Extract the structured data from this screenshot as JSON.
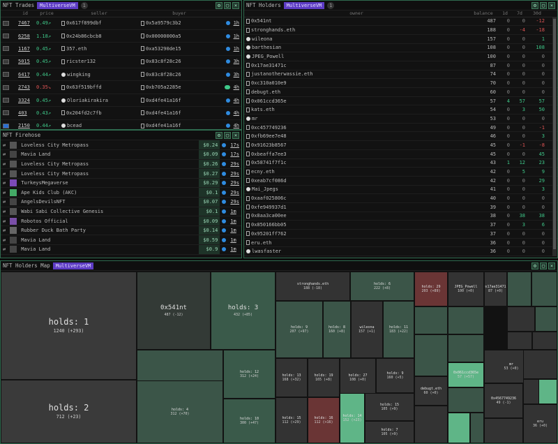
{
  "trades": {
    "title": "NFT Trades",
    "tag": "MultiverseVM",
    "tag_count": "1",
    "cols": {
      "id": "id",
      "price": "price",
      "seller": "seller",
      "buyer": "buyer"
    },
    "rows": [
      {
        "id": "7467",
        "price": "0.49",
        "seller": "0x617f899dbf",
        "buyer": "0x5a9579c3b2",
        "time": "1h"
      },
      {
        "id": "6258",
        "price": "1.18",
        "seller": "0x24b86cbcb8",
        "buyer": "0x00000000a5",
        "time": "1h"
      },
      {
        "id": "1167",
        "price": "0.45",
        "seller": "357.eth",
        "buyer": "0xa53290de15",
        "time": "1h"
      },
      {
        "id": "5015",
        "price": "0.45",
        "seller": "ricster132",
        "buyer": "0x83c8f28c26",
        "time": "3h"
      },
      {
        "id": "6417",
        "price": "0.44",
        "seller": "wingking",
        "buyer": "0x83c8f28c26",
        "time": "3h"
      },
      {
        "id": "2743",
        "price": "0.35",
        "seller": "0x63f519bffd",
        "buyer": "0xb705a2285e",
        "time": "4h"
      },
      {
        "id": "3324",
        "price": "0.45",
        "seller": "Oloriakirakira",
        "buyer": "0xd4fe41a16f",
        "time": "4h"
      },
      {
        "id": "403",
        "price": "0.43",
        "seller": "0x204fd2c7fb",
        "buyer": "0xd4fe41a16f",
        "time": "4h"
      },
      {
        "id": "2150",
        "price": "0.44",
        "seller": "bcead",
        "buyer": "0xd4fe41a16f",
        "time": "4h"
      }
    ]
  },
  "firehose": {
    "title": "NFT Firehose",
    "rows": [
      {
        "name": "Loveless City Metropass",
        "price": "$0.24",
        "time": "17s"
      },
      {
        "name": "Mavia Land",
        "price": "$0.09",
        "time": "17s"
      },
      {
        "name": "Loveless City Metropass",
        "price": "$0.26",
        "time": "29s"
      },
      {
        "name": "Loveless City Metropass",
        "price": "$0.27",
        "time": "29s"
      },
      {
        "name": "TurkeysMegaverse",
        "price": "$0.29",
        "time": "29s"
      },
      {
        "name": "Ape Kids Club (AKC)",
        "price": "$0.1",
        "time": "29s"
      },
      {
        "name": "AngelsDevilsNFT",
        "price": "$0.07",
        "time": "29s"
      },
      {
        "name": "Wabi Sabi Collective Genesis",
        "price": "$0.1",
        "time": "1m"
      },
      {
        "name": "Robotos Official",
        "price": "$0.09",
        "time": "1m"
      },
      {
        "name": "Rubber Duck Bath Party",
        "price": "$0.14",
        "time": "1m"
      },
      {
        "name": "Mavia Land",
        "price": "$0.59",
        "time": "1m"
      },
      {
        "name": "Mavia Land",
        "price": "$0.9",
        "time": "1m"
      }
    ]
  },
  "holders": {
    "title": "NFT Holders",
    "tag": "MultiverseVM",
    "tag_count": "1",
    "cols": {
      "owner": "owner",
      "balance": "balance",
      "d1": "1d",
      "d7": "7d",
      "d30": "30d"
    },
    "rows": [
      {
        "owner": "0x541nt",
        "bal": "487",
        "d1": "0",
        "d7": "0",
        "d30": "-12"
      },
      {
        "owner": "stronghands.eth",
        "bal": "188",
        "d1": "0",
        "d7": "-4",
        "d30": "-18"
      },
      {
        "owner": "wileona",
        "bal": "157",
        "d1": "0",
        "d7": "0",
        "d30": "1"
      },
      {
        "owner": "barthesian",
        "bal": "108",
        "d1": "0",
        "d7": "0",
        "d30": "108"
      },
      {
        "owner": "JPEG_Powell",
        "bal": "100",
        "d1": "0",
        "d7": "0",
        "d30": "0"
      },
      {
        "owner": "0x17ae31471c",
        "bal": "87",
        "d1": "0",
        "d7": "0",
        "d30": "0"
      },
      {
        "owner": "justanotherwassie.eth",
        "bal": "74",
        "d1": "0",
        "d7": "0",
        "d30": "0"
      },
      {
        "owner": "0xc310a010e9",
        "bal": "70",
        "d1": "0",
        "d7": "0",
        "d30": "0"
      },
      {
        "owner": "debugt.eth",
        "bal": "60",
        "d1": "0",
        "d7": "0",
        "d30": "0"
      },
      {
        "owner": "0x061ccd365e",
        "bal": "57",
        "d1": "4",
        "d7": "57",
        "d30": "57"
      },
      {
        "owner": "kats.eth",
        "bal": "54",
        "d1": "0",
        "d7": "3",
        "d30": "50"
      },
      {
        "owner": "mr",
        "bal": "53",
        "d1": "0",
        "d7": "0",
        "d30": "0"
      },
      {
        "owner": "0xc457749236",
        "bal": "49",
        "d1": "0",
        "d7": "0",
        "d30": "-1"
      },
      {
        "owner": "0xfb69ee7e48",
        "bal": "46",
        "d1": "0",
        "d7": "0",
        "d30": "3"
      },
      {
        "owner": "0x91623b8567",
        "bal": "45",
        "d1": "0",
        "d7": "-1",
        "d30": "-8"
      },
      {
        "owner": "0xbeaffa7ee3",
        "bal": "45",
        "d1": "0",
        "d7": "0",
        "d30": "45"
      },
      {
        "owner": "0x58741f7f1c",
        "bal": "43",
        "d1": "1",
        "d7": "12",
        "d30": "23"
      },
      {
        "owner": "ecny.eth",
        "bal": "42",
        "d1": "0",
        "d7": "5",
        "d30": "9"
      },
      {
        "owner": "0xeab7cf086d",
        "bal": "42",
        "d1": "0",
        "d7": "0",
        "d30": "29"
      },
      {
        "owner": "Mai_Jpegs",
        "bal": "41",
        "d1": "0",
        "d7": "0",
        "d30": "3"
      },
      {
        "owner": "0xaaf025806c",
        "bal": "40",
        "d1": "0",
        "d7": "0",
        "d30": "0"
      },
      {
        "owner": "0xfe949937d1",
        "bal": "39",
        "d1": "0",
        "d7": "0",
        "d30": "0"
      },
      {
        "owner": "0x8aa3ca00ee",
        "bal": "38",
        "d1": "0",
        "d7": "38",
        "d30": "38"
      },
      {
        "owner": "0x850166bb05",
        "bal": "37",
        "d1": "0",
        "d7": "3",
        "d30": "6"
      },
      {
        "owner": "0x95201ff762",
        "bal": "37",
        "d1": "0",
        "d7": "0",
        "d30": "0"
      },
      {
        "owner": "eru.eth",
        "bal": "36",
        "d1": "0",
        "d7": "0",
        "d30": "0"
      },
      {
        "owner": "lwasfaster",
        "bal": "36",
        "d1": "0",
        "d7": "0",
        "d30": "0"
      }
    ]
  },
  "map": {
    "title": "NFT Holders Map",
    "tag": "MultiverseVM",
    "cells": [
      {
        "l1": "holds: 1",
        "l2": "1240 (+293)",
        "big": 1
      },
      {
        "l1": "holds: 2",
        "l2": "712 (+23)",
        "big": 1
      },
      {
        "l1": "0x541nt",
        "l2": "487 (-12)",
        "big": 2
      },
      {
        "l1": "holds: 3",
        "l2": "432 (+85)",
        "big": 2
      },
      {
        "l1": "holds: 5",
        "l2": "331 (+26)"
      },
      {
        "l1": "holds: 4",
        "l2": "312 (+70)"
      },
      {
        "l1": "holds: 12",
        "l2": "312 (+24)"
      },
      {
        "l1": "holds: 10",
        "l2": "300 (+47)"
      },
      {
        "l1": "stronghands.eth",
        "l2": "188 (-18)"
      },
      {
        "l1": "holds: 6",
        "l2": "222 (+8)"
      },
      {
        "l1": "holds: 29",
        "l2": "203 (+89)"
      },
      {
        "l1": "JPEG_Powell",
        "l2": "100 (+0)"
      },
      {
        "l1": "0x17ae31471c",
        "l2": "87 (+0)"
      },
      {
        "l1": "holds: 9",
        "l2": "207 (+97)"
      },
      {
        "l1": "holds: 8",
        "l2": "160 (+8)"
      },
      {
        "l1": "wileona",
        "l2": "157 (+1)"
      },
      {
        "l1": "holds: 11",
        "l2": "183 (+22)"
      },
      {
        "l1": "holds: 13",
        "l2": "168 (+32)"
      },
      {
        "l1": "holds: 19",
        "l2": "165 (+8)"
      },
      {
        "l1": "holds: 27",
        "l2": "108 (+0)"
      },
      {
        "l1": "holds: 9",
        "l2": "160 (+5)"
      },
      {
        "l1": "holds: 15",
        "l2": "112 (+29)"
      },
      {
        "l1": "holds: 16",
        "l2": "112 (+16)"
      },
      {
        "l1": "holds: 14",
        "l2": "152 (+23)"
      },
      {
        "l1": "holds: 15",
        "l2": "105 (+9)"
      },
      {
        "l1": "holds: 7",
        "l2": "105 (+9)"
      },
      {
        "l1": "mr",
        "l2": "53 (+0)"
      },
      {
        "l1": "debugt.eth",
        "l2": "60 (+0)"
      },
      {
        "l1": "0x4567749236",
        "l2": "49 (-1)"
      },
      {
        "l1": "0x061ccd365e",
        "l2": "57 (+57)"
      },
      {
        "l1": "eru",
        "l2": "36 (+0)"
      }
    ]
  }
}
